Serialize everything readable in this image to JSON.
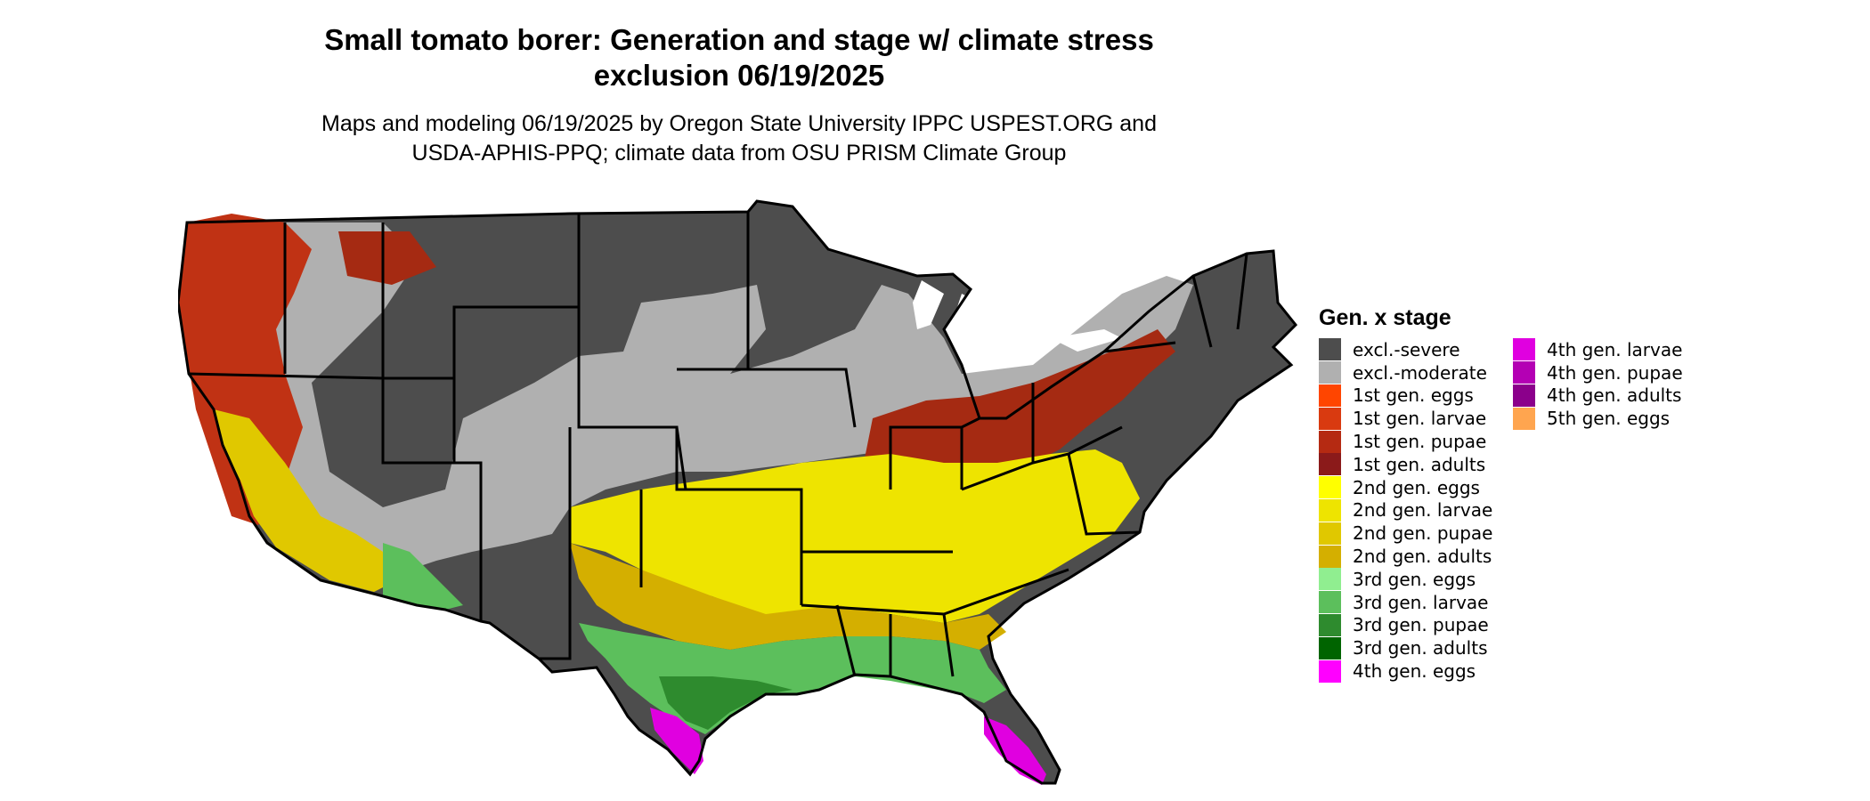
{
  "title": {
    "line1": "Small tomato borer: Generation and stage w/ climate stress",
    "line2": "exclusion 06/19/2025"
  },
  "subtitle": {
    "line1": "Maps and modeling 06/19/2025 by Oregon State University IPPC USPEST.ORG and",
    "line2": "USDA-APHIS-PPQ; climate data from OSU PRISM Climate Group"
  },
  "legend": {
    "title": "Gen. x stage",
    "column1": [
      {
        "label": "excl.-severe",
        "color": "#4d4d4d"
      },
      {
        "label": "excl.-moderate",
        "color": "#b0b0b0"
      },
      {
        "label": "1st gen. eggs",
        "color": "#ff4500"
      },
      {
        "label": "1st gen. larvae",
        "color": "#d93a10"
      },
      {
        "label": "1st gen. pupae",
        "color": "#b52a12"
      },
      {
        "label": "1st gen. adults",
        "color": "#8b1a1a"
      },
      {
        "label": "2nd gen. eggs",
        "color": "#ffff00"
      },
      {
        "label": "2nd gen. larvae",
        "color": "#eee400"
      },
      {
        "label": "2nd gen. pupae",
        "color": "#e0c800"
      },
      {
        "label": "2nd gen. adults",
        "color": "#d4af00"
      },
      {
        "label": "3rd gen. eggs",
        "color": "#90ee90"
      },
      {
        "label": "3rd gen. larvae",
        "color": "#5cbf5c"
      },
      {
        "label": "3rd gen. pupae",
        "color": "#2e8b2e"
      },
      {
        "label": "3rd gen. adults",
        "color": "#006400"
      },
      {
        "label": "4th gen. eggs",
        "color": "#ff00ff"
      }
    ],
    "column2": [
      {
        "label": "4th gen. larvae",
        "color": "#e000e0"
      },
      {
        "label": "4th gen. pupae",
        "color": "#b400b4"
      },
      {
        "label": "4th gen. adults",
        "color": "#8b008b"
      },
      {
        "label": "5th gen. eggs",
        "color": "#ffa54f"
      }
    ]
  }
}
